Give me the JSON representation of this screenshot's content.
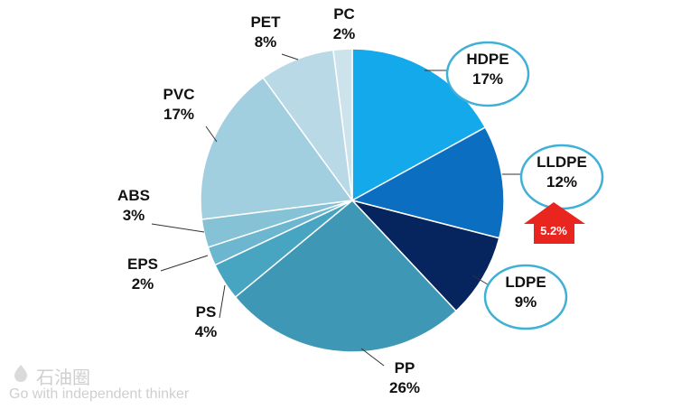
{
  "chart_data": {
    "type": "pie",
    "title": "",
    "slices": [
      {
        "label": "HDPE",
        "value": 17,
        "value_label": "17%",
        "color": "#14a9ea",
        "highlight": true
      },
      {
        "label": "LLDPE",
        "value": 12,
        "value_label": "12%",
        "color": "#0c6ec0",
        "highlight": true
      },
      {
        "label": "LDPE",
        "value": 9,
        "value_label": "9%",
        "color": "#06245e",
        "highlight": true
      },
      {
        "label": "PP",
        "value": 26,
        "value_label": "26%",
        "color": "#3e97b4",
        "highlight": false
      },
      {
        "label": "PS",
        "value": 4,
        "value_label": "4%",
        "color": "#47a5c2",
        "highlight": false
      },
      {
        "label": "EPS",
        "value": 2,
        "value_label": "2%",
        "color": "#6cb6cf",
        "highlight": false
      },
      {
        "label": "ABS",
        "value": 3,
        "value_label": "3%",
        "color": "#85c2d6",
        "highlight": false
      },
      {
        "label": "PVC",
        "value": 17,
        "value_label": "17%",
        "color": "#a2cfe0",
        "highlight": false
      },
      {
        "label": "PET",
        "value": 8,
        "value_label": "8%",
        "color": "#b9d9e6",
        "highlight": false
      },
      {
        "label": "PC",
        "value": 2,
        "value_label": "2%",
        "color": "#cde3ec",
        "highlight": false
      }
    ],
    "annotation": {
      "text": "5.2%",
      "target": "LLDPE",
      "color": "#e8251f"
    },
    "highlight_ring_color": "#3fb0d6",
    "legend": "none"
  },
  "watermark": {
    "cn": "石油圈",
    "en": "Go with independent thinker"
  }
}
